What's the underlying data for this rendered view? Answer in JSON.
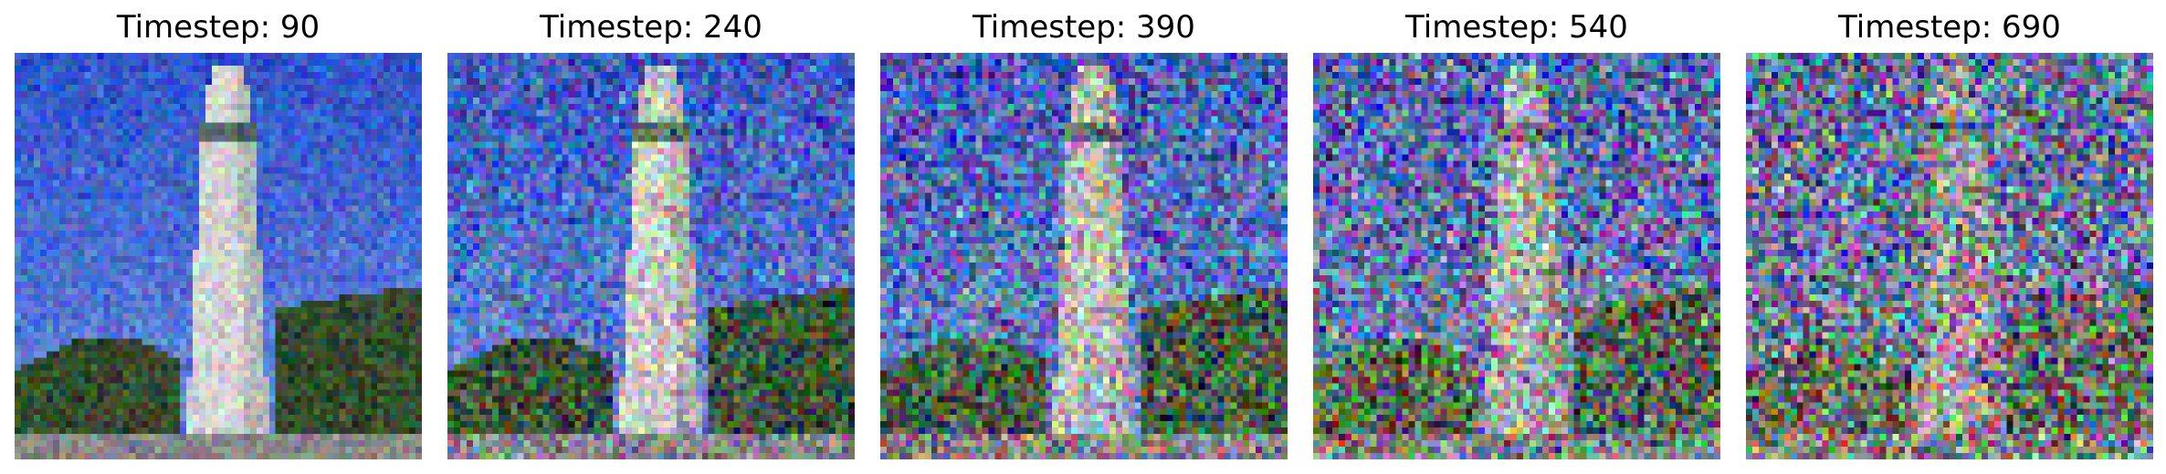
{
  "figure": {
    "panels": [
      {
        "title": "Timestep: 90",
        "noise_level": 0.12
      },
      {
        "title": "Timestep: 240",
        "noise_level": 0.35
      },
      {
        "title": "Timestep: 390",
        "noise_level": 0.55
      },
      {
        "title": "Timestep: 540",
        "noise_level": 0.75
      },
      {
        "title": "Timestep: 690",
        "noise_level": 0.9
      }
    ]
  },
  "scene_colors": {
    "sky_top": "#2a4fd0",
    "sky_bottom": "#6a8fe0",
    "tower": "#d8dcd8",
    "tower_band": "#5a6a6a",
    "trees": "#2f4a28",
    "ground": "#8a8a8a"
  }
}
